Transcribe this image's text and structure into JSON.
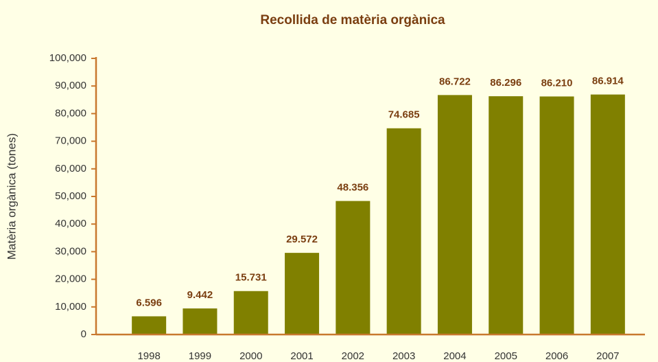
{
  "chart_data": {
    "type": "bar",
    "title": "Recollida de matèria orgànica",
    "y_label": "Matèria orgànica (tones)",
    "categories": [
      "1998",
      "1999",
      "2000",
      "2001",
      "2002",
      "2003",
      "2004",
      "2005",
      "2006",
      "2007"
    ],
    "values": [
      6596,
      9442,
      15731,
      29572,
      48356,
      74685,
      86722,
      86296,
      86210,
      86914
    ],
    "value_labels": [
      "6.596",
      "9.442",
      "15.731",
      "29.572",
      "48.356",
      "74.685",
      "86.722",
      "86.296",
      "86.210",
      "86.914"
    ],
    "color": "#808000",
    "ylim": [
      0,
      100000
    ],
    "yticks": [
      0,
      {
        "value": 10000,
        "label": "10,000"
      },
      {
        "value": 20000,
        "label": "20,000"
      },
      {
        "value": 30000,
        "label": "30,000"
      },
      {
        "value": 40000,
        "label": "40,000"
      },
      {
        "value": 50000,
        "label": "50,000"
      },
      {
        "value": 60000,
        "label": "60,000"
      },
      {
        "value": 70000,
        "label": "70,000"
      },
      {
        "value": 80000,
        "label": "80,000"
      },
      {
        "value": 90000,
        "label": "90,000"
      },
      {
        "value": 100000,
        "label": "100,000"
      }
    ],
    "grid": false
  }
}
